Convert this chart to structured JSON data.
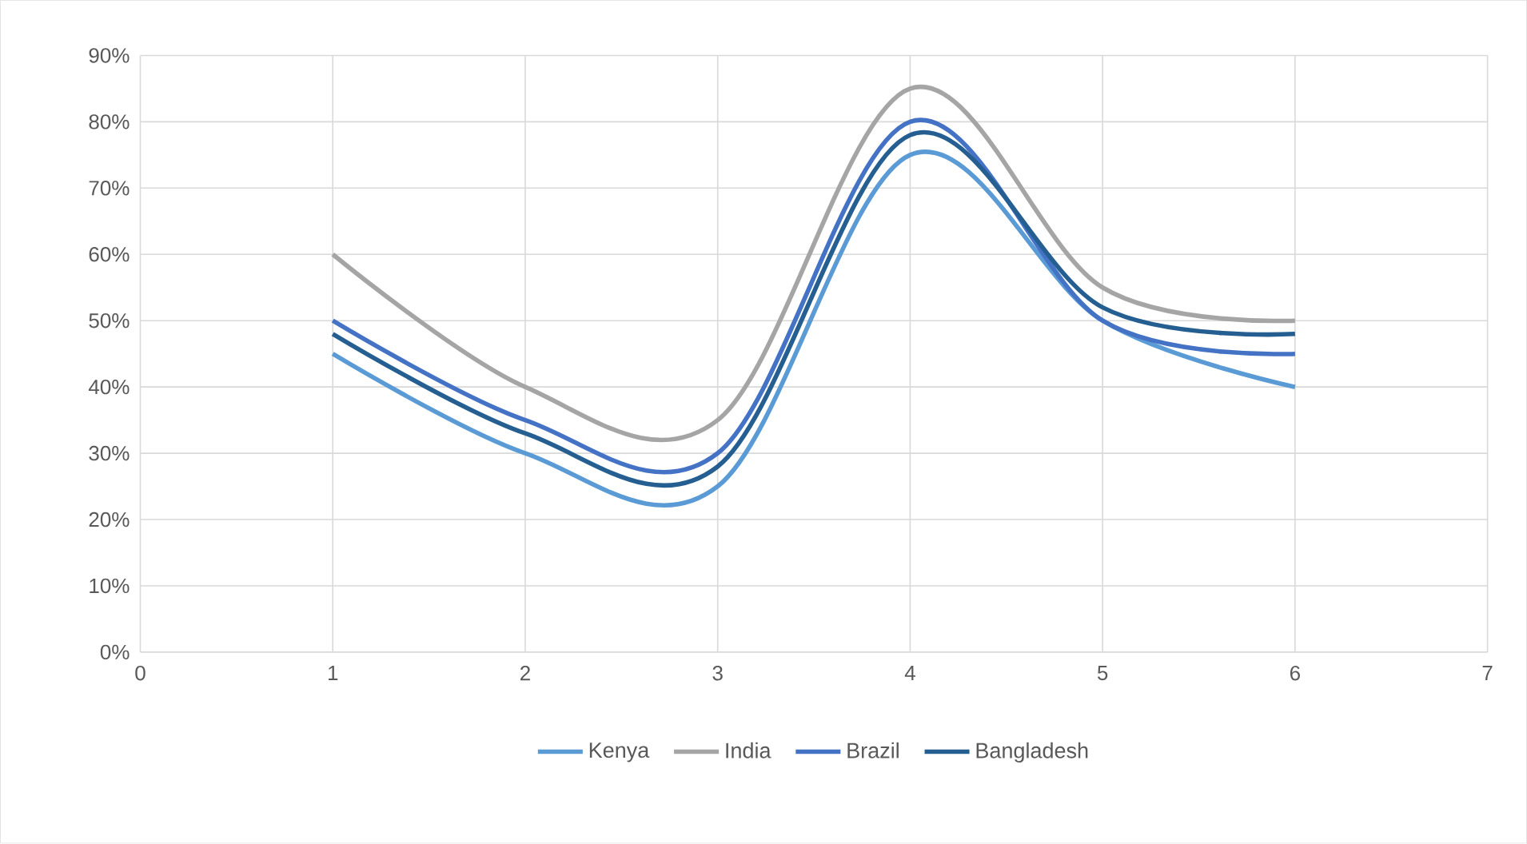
{
  "chart_data": {
    "type": "line",
    "x": [
      1,
      2,
      3,
      4,
      5,
      6
    ],
    "series": [
      {
        "name": "Kenya",
        "color": "#5b9bd5",
        "values": [
          45,
          30,
          25,
          75,
          50,
          40
        ]
      },
      {
        "name": "India",
        "color": "#a5a5a5",
        "values": [
          60,
          40,
          35,
          85,
          55,
          50
        ]
      },
      {
        "name": "Brazil",
        "color": "#4472c4",
        "values": [
          50,
          35,
          30,
          80,
          50,
          45
        ]
      },
      {
        "name": "Bangladesh",
        "color": "#255e91",
        "values": [
          48,
          33,
          28,
          78,
          52,
          48
        ]
      }
    ],
    "xlim": [
      0,
      7
    ],
    "xticks": [
      0,
      1,
      2,
      3,
      4,
      5,
      6,
      7
    ],
    "ylim": [
      0,
      90
    ],
    "yticks": [
      {
        "value": 0,
        "label": "0%"
      },
      {
        "value": 10,
        "label": "10%"
      },
      {
        "value": 20,
        "label": "20%"
      },
      {
        "value": 30,
        "label": "30%"
      },
      {
        "value": 40,
        "label": "40%"
      },
      {
        "value": 50,
        "label": "50%"
      },
      {
        "value": 60,
        "label": "60%"
      },
      {
        "value": 70,
        "label": "70%"
      },
      {
        "value": 80,
        "label": "80%"
      },
      {
        "value": 90,
        "label": "90%"
      }
    ],
    "grid": true,
    "legend": "bottom",
    "marker": "none",
    "line_style": "solid"
  }
}
